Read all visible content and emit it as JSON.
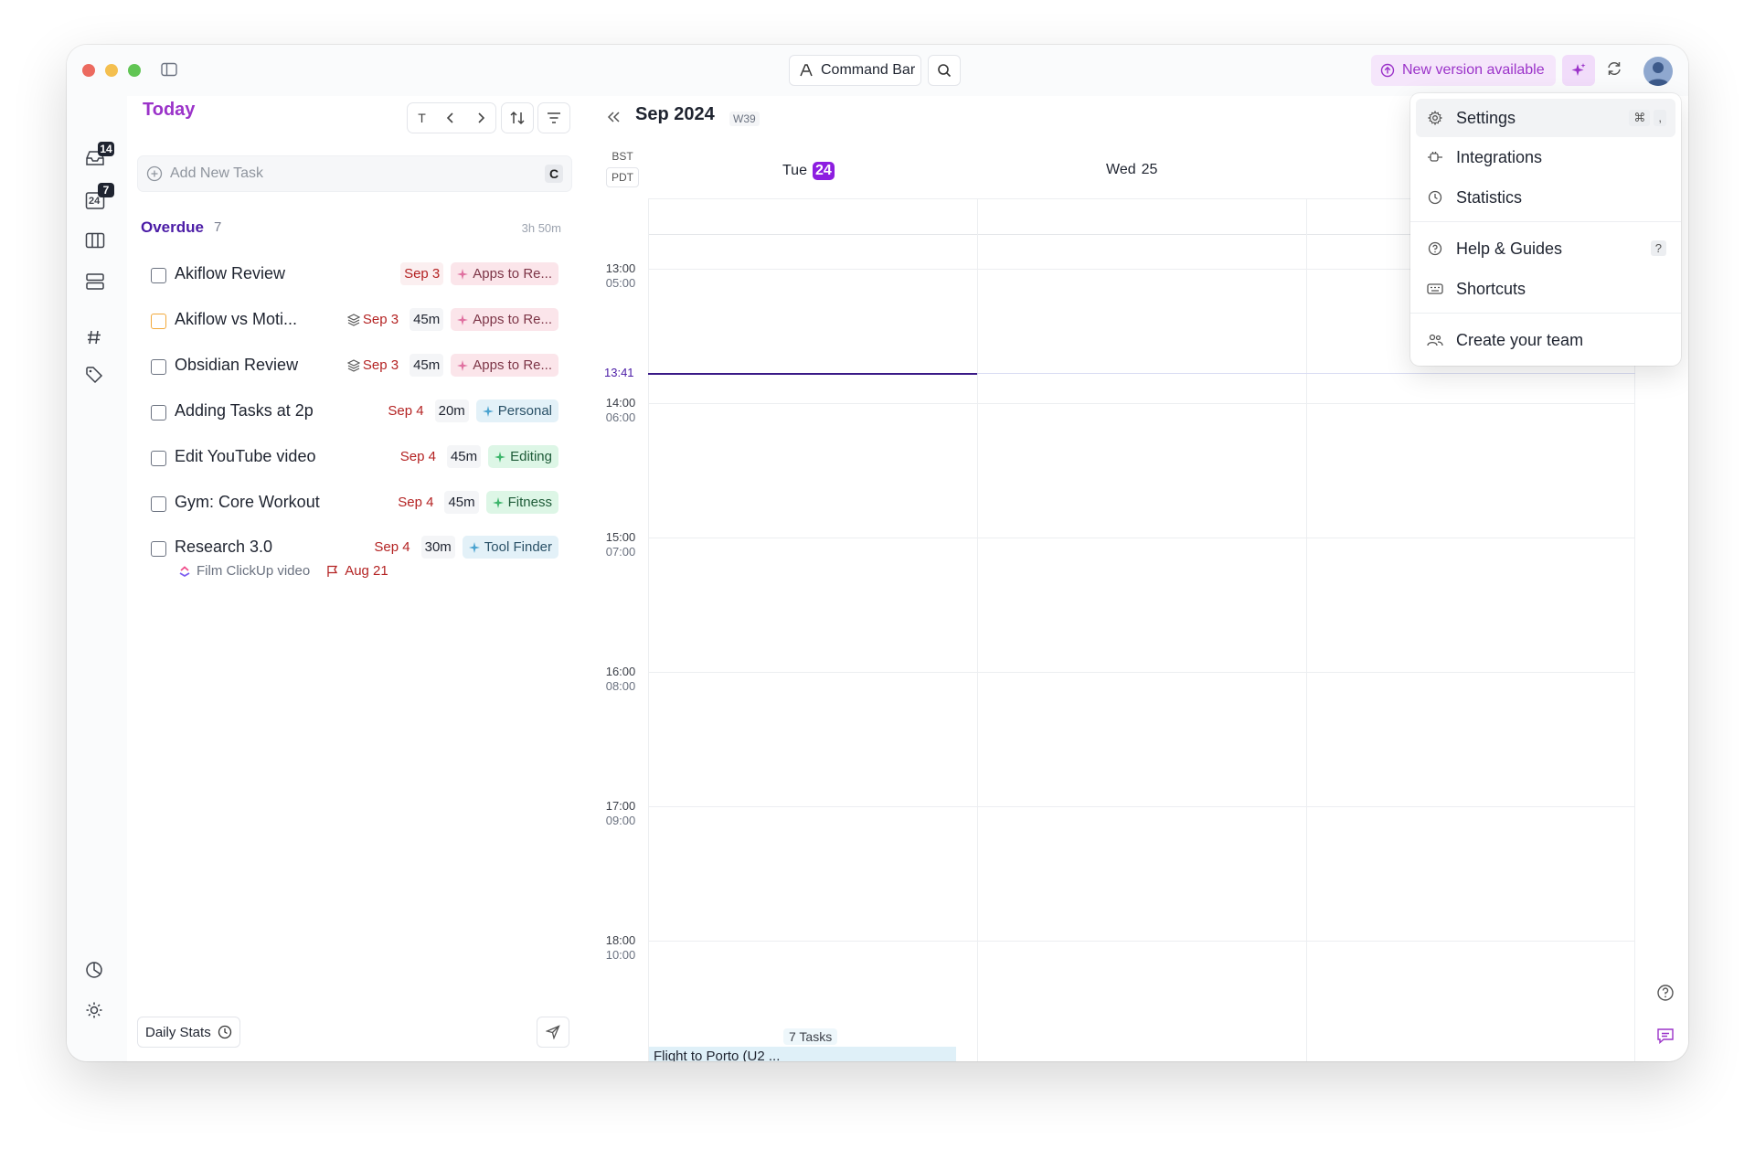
{
  "titlebar": {
    "command_bar_label": "Command Bar",
    "new_version_label": "New version available"
  },
  "rail": {
    "inbox_badge": "14",
    "calendar_badge": "7",
    "calendar_day": "24"
  },
  "tasks_panel": {
    "title": "Today",
    "nav_today_label": "T",
    "add_task_placeholder": "Add New Task",
    "add_task_shortcut": "C",
    "section": {
      "title": "Overdue",
      "count": "7",
      "duration": "3h 50m"
    },
    "tasks": [
      {
        "name": "Akiflow Review",
        "date": "Sep 3",
        "duration": "",
        "tag": "Apps to Re...",
        "tag_color": "pink",
        "checkbox": "gray",
        "stack_icon": false
      },
      {
        "name": "Akiflow vs Moti...",
        "date": "Sep 3",
        "duration": "45m",
        "tag": "Apps to Re...",
        "tag_color": "pink",
        "checkbox": "orange",
        "stack_icon": true
      },
      {
        "name": "Obsidian Review",
        "date": "Sep 3",
        "duration": "45m",
        "tag": "Apps to Re...",
        "tag_color": "pink",
        "checkbox": "gray",
        "stack_icon": true
      },
      {
        "name": "Adding Tasks at 2p",
        "date": "Sep 4",
        "duration": "20m",
        "tag": "Personal",
        "tag_color": "blue",
        "checkbox": "gray",
        "stack_icon": false
      },
      {
        "name": "Edit YouTube video",
        "date": "Sep 4",
        "duration": "45m",
        "tag": "Editing",
        "tag_color": "green",
        "checkbox": "gray",
        "stack_icon": false
      },
      {
        "name": "Gym: Core Workout",
        "date": "Sep 4",
        "duration": "45m",
        "tag": "Fitness",
        "tag_color": "green",
        "checkbox": "gray",
        "stack_icon": false
      },
      {
        "name": "Research 3.0",
        "date": "Sep 4",
        "duration": "30m",
        "tag": "Tool Finder",
        "tag_color": "blue",
        "checkbox": "gray",
        "stack_icon": false,
        "sub_link": "Film ClickUp video",
        "sub_due": "Aug 21"
      }
    ],
    "daily_stats_label": "Daily Stats"
  },
  "calendar": {
    "title": "Sep 2024",
    "week": "W39",
    "tz_primary": "BST",
    "tz_secondary": "PDT",
    "days": [
      {
        "name": "Tue",
        "num": "24",
        "is_today": true
      },
      {
        "name": "Wed",
        "num": "25",
        "is_today": false
      }
    ],
    "hours": [
      {
        "primary": "13:00",
        "secondary": "05:00"
      },
      {
        "primary": "14:00",
        "secondary": "06:00"
      },
      {
        "primary": "15:00",
        "secondary": "07:00"
      },
      {
        "primary": "16:00",
        "secondary": "08:00"
      },
      {
        "primary": "17:00",
        "secondary": "09:00"
      },
      {
        "primary": "18:00",
        "secondary": "10:00"
      }
    ],
    "now_time": "13:41",
    "tasks_count_label": "7 Tasks",
    "event_title": "Flight to Porto (U2 ..."
  },
  "dropdown": {
    "items": [
      {
        "label": "Settings",
        "icon": "gear-icon",
        "shortcut": [
          "⌘",
          ","
        ]
      },
      {
        "label": "Integrations",
        "icon": "plug-icon"
      },
      {
        "label": "Statistics",
        "icon": "clock-icon"
      },
      {
        "label": "Help & Guides",
        "icon": "help-icon",
        "shortcut": [
          "?"
        ]
      },
      {
        "label": "Shortcuts",
        "icon": "keyboard-icon"
      },
      {
        "label": "Create your team",
        "icon": "team-icon"
      }
    ]
  },
  "colors": {
    "accent_purple": "#9b33c9",
    "today_badge": "#8d1ee0",
    "overdue_red": "#b42323",
    "now_line": "#3a1a87"
  }
}
